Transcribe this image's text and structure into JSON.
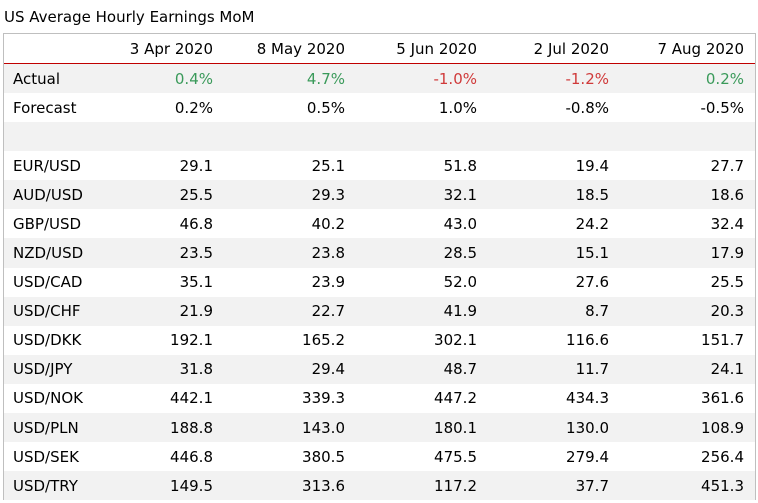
{
  "title": "US Average Hourly Earnings MoM",
  "chart_data": {
    "type": "table",
    "title": "US Average Hourly Earnings MoM",
    "columns": [
      "3 Apr 2020",
      "8 May 2020",
      "5 Jun 2020",
      "2 Jul 2020",
      "7 Aug 2020"
    ],
    "actual": {
      "label": "Actual",
      "values": [
        "0.4%",
        "4.7%",
        "-1.0%",
        "-1.2%",
        "0.2%"
      ],
      "colors": [
        "#3a9a5a",
        "#3a9a5a",
        "#d03a3a",
        "#d03a3a",
        "#3a9a5a"
      ]
    },
    "forecast": {
      "label": "Forecast",
      "values": [
        "0.2%",
        "0.5%",
        "1.0%",
        "-0.8%",
        "-0.5%"
      ]
    },
    "rows": [
      {
        "label": "EUR/USD",
        "values": [
          "29.1",
          "25.1",
          "51.8",
          "19.4",
          "27.7"
        ]
      },
      {
        "label": "AUD/USD",
        "values": [
          "25.5",
          "29.3",
          "32.1",
          "18.5",
          "18.6"
        ]
      },
      {
        "label": "GBP/USD",
        "values": [
          "46.8",
          "40.2",
          "43.0",
          "24.2",
          "32.4"
        ]
      },
      {
        "label": "NZD/USD",
        "values": [
          "23.5",
          "23.8",
          "28.5",
          "15.1",
          "17.9"
        ]
      },
      {
        "label": "USD/CAD",
        "values": [
          "35.1",
          "23.9",
          "52.0",
          "27.6",
          "25.5"
        ]
      },
      {
        "label": "USD/CHF",
        "values": [
          "21.9",
          "22.7",
          "41.9",
          "8.7",
          "20.3"
        ]
      },
      {
        "label": "USD/DKK",
        "values": [
          "192.1",
          "165.2",
          "302.1",
          "116.6",
          "151.7"
        ]
      },
      {
        "label": "USD/JPY",
        "values": [
          "31.8",
          "29.4",
          "48.7",
          "11.7",
          "24.1"
        ]
      },
      {
        "label": "USD/NOK",
        "values": [
          "442.1",
          "339.3",
          "447.2",
          "434.3",
          "361.6"
        ]
      },
      {
        "label": "USD/PLN",
        "values": [
          "188.8",
          "143.0",
          "180.1",
          "130.0",
          "108.9"
        ]
      },
      {
        "label": "USD/SEK",
        "values": [
          "446.8",
          "380.5",
          "475.5",
          "279.4",
          "256.4"
        ]
      },
      {
        "label": "USD/TRY",
        "values": [
          "149.5",
          "313.6",
          "117.2",
          "37.7",
          "451.3"
        ]
      }
    ]
  }
}
